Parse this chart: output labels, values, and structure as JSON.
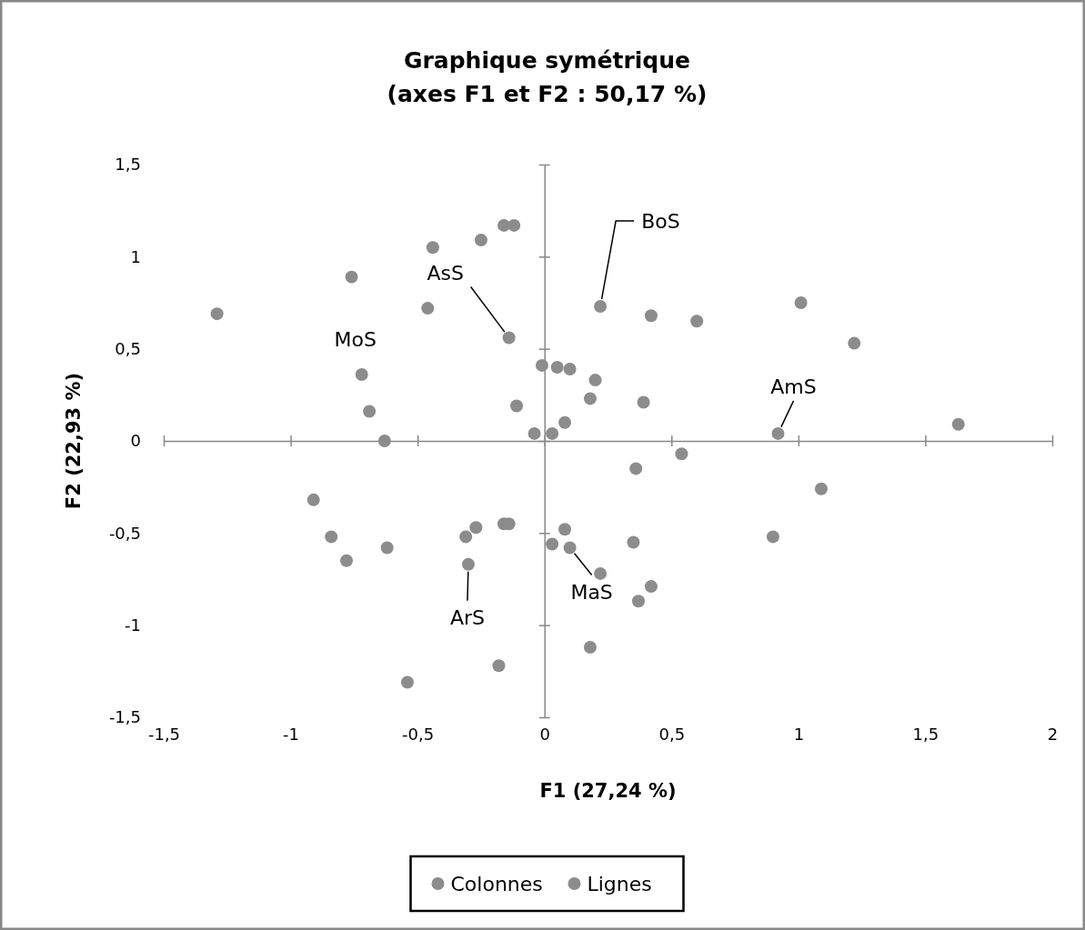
{
  "chart_data": {
    "type": "scatter",
    "title": "Graphique symétrique",
    "subtitle": "(axes F1 et F2 : 50,17 %)",
    "xlabel": "F1 (27,24 %)",
    "ylabel": "F2 (22,93 %)",
    "xlim": [
      -1.5,
      2
    ],
    "ylim": [
      -1.5,
      1.5
    ],
    "xticks": [
      {
        "value": -1.5,
        "label": "-1,5"
      },
      -1,
      {
        "value": -0.5,
        "label": "-0,5"
      },
      0,
      {
        "value": 0.5,
        "label": "0,5"
      },
      1,
      {
        "value": 1.5,
        "label": "1,5"
      },
      2
    ],
    "yticks": [
      {
        "value": -1.5,
        "label": "-1,5"
      },
      -1,
      {
        "value": -0.5,
        "label": "-0,5"
      },
      0,
      {
        "value": 0.5,
        "label": "0,5"
      },
      1,
      {
        "value": 1.5,
        "label": "1,5"
      }
    ],
    "legend": "bottom",
    "marker": "circle",
    "series": [
      {
        "name": "Colonnes",
        "color": "#8c8c8c",
        "x": [
          -0.72,
          -0.14,
          0.22,
          0.92,
          -0.3,
          0.1
        ],
        "values": [
          0.36,
          0.56,
          0.73,
          0.04,
          -0.67,
          -0.58
        ]
      },
      {
        "name": "Lignes",
        "color": "#8c8c8c",
        "x": [
          -1.29,
          -0.76,
          -0.44,
          -0.25,
          -0.16,
          -0.12,
          -0.46,
          -0.69,
          -0.63,
          -0.11,
          -0.01,
          0.05,
          0.1,
          -0.04,
          0.03,
          0.08,
          0.18,
          0.2,
          0.42,
          0.6,
          0.39,
          1.01,
          1.22,
          1.63,
          0.54,
          0.36,
          1.09,
          -0.91,
          -0.84,
          -0.78,
          -0.62,
          -0.27,
          -0.31,
          -0.16,
          -0.14,
          0.03,
          0.08,
          0.22,
          0.35,
          0.42,
          0.37,
          0.18,
          -0.18,
          -0.54,
          0.9
        ],
        "values": [
          0.69,
          0.89,
          1.05,
          1.09,
          1.17,
          1.17,
          0.72,
          0.16,
          0,
          0.19,
          0.41,
          0.4,
          0.39,
          0.04,
          0.04,
          0.1,
          0.23,
          0.33,
          0.68,
          0.65,
          0.21,
          0.75,
          0.53,
          0.09,
          -0.07,
          -0.15,
          -0.26,
          -0.32,
          -0.52,
          -0.65,
          -0.58,
          -0.47,
          -0.52,
          -0.45,
          -0.45,
          -0.56,
          -0.48,
          -0.72,
          -0.55,
          -0.79,
          -0.87,
          -1.12,
          -1.22,
          -1.31,
          -0.52
        ]
      }
    ],
    "annotations": [
      {
        "text": "MoS",
        "x": -0.72,
        "y": 0.36
      },
      {
        "text": "AsS",
        "x": -0.14,
        "y": 0.56
      },
      {
        "text": "BoS",
        "x": 0.22,
        "y": 0.73
      },
      {
        "text": "AmS",
        "x": 0.92,
        "y": 0.04
      },
      {
        "text": "ArS",
        "x": -0.3,
        "y": -0.67
      },
      {
        "text": "MaS",
        "x": 0.1,
        "y": -0.58
      }
    ]
  }
}
